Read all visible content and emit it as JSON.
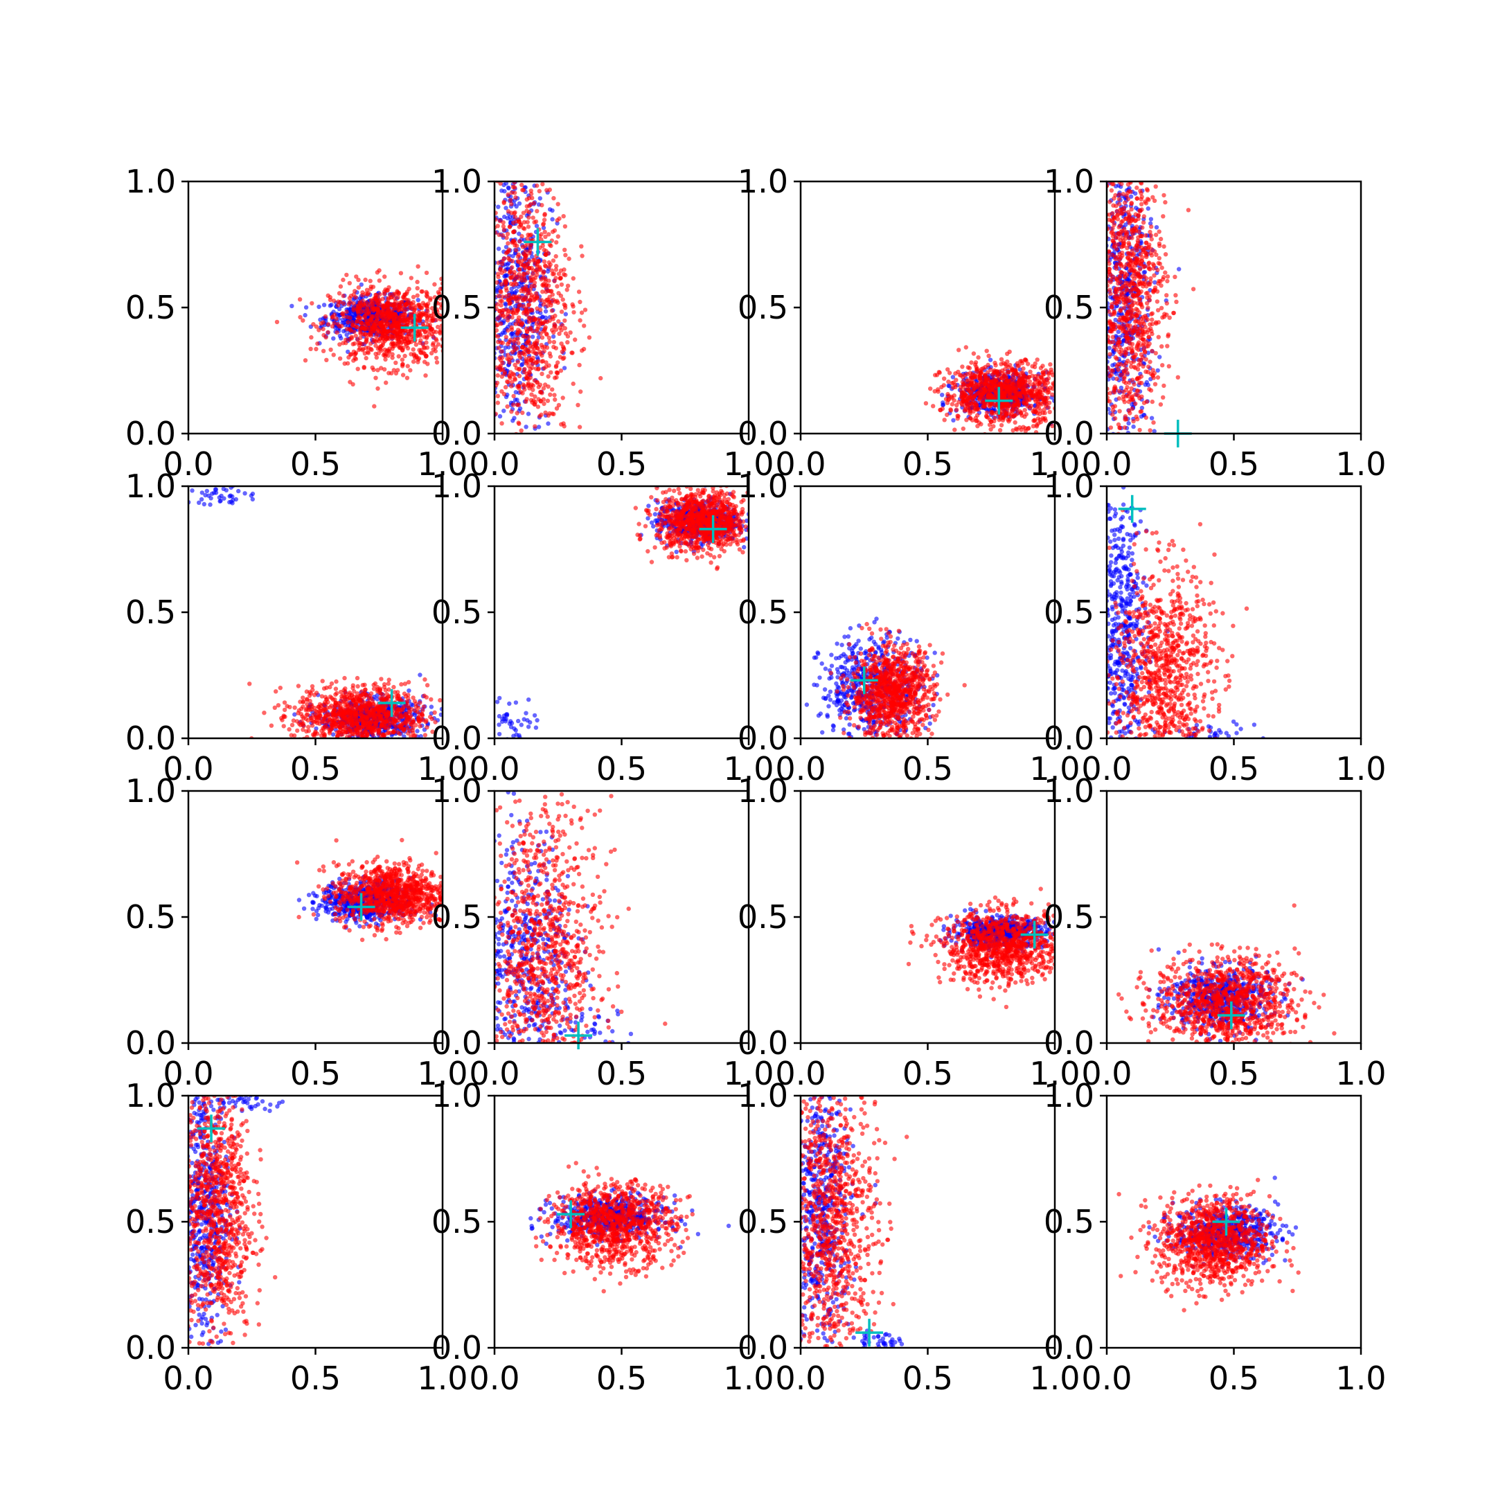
{
  "colors": {
    "background": "#ffffff",
    "series_a": "#0000ff",
    "series_b": "#ff0000",
    "marker": "#00bfbf",
    "axes": "#000000"
  },
  "chart_data": [
    {
      "type": "scatter",
      "xlim": [
        0,
        1
      ],
      "ylim": [
        0,
        1
      ],
      "grid": false,
      "x_ticks": [
        "0.0",
        "0.5",
        "1.0"
      ],
      "y_ticks": [
        "0.0",
        "0.5",
        "1.0"
      ],
      "marker": [
        0.89,
        0.42
      ],
      "series": [
        {
          "color": "#0000ff",
          "center": [
            0.72,
            0.46
          ],
          "spread": [
            0.09,
            0.04
          ],
          "clusters": []
        },
        {
          "color": "#ff0000",
          "center": [
            0.8,
            0.43
          ],
          "spread": [
            0.12,
            0.08
          ],
          "clusters": []
        }
      ]
    },
    {
      "type": "scatter",
      "xlim": [
        0,
        1
      ],
      "ylim": [
        0,
        1
      ],
      "grid": false,
      "x_ticks": [
        "0.0",
        "0.5",
        "1.0"
      ],
      "y_ticks": [
        "0.0",
        "0.5",
        "1.0"
      ],
      "marker": [
        0.17,
        0.76
      ],
      "series": [
        {
          "color": "#0000ff",
          "center": [
            0.08,
            0.55
          ],
          "spread": [
            0.07,
            0.28
          ],
          "clusters": []
        },
        {
          "color": "#ff0000",
          "center": [
            0.12,
            0.5
          ],
          "spread": [
            0.09,
            0.28
          ],
          "clusters": []
        }
      ]
    },
    {
      "type": "scatter",
      "xlim": [
        0,
        1
      ],
      "ylim": [
        0,
        1
      ],
      "grid": false,
      "x_ticks": [
        "0.0",
        "0.5",
        "1.0"
      ],
      "y_ticks": [
        "0.0",
        "0.5",
        "1.0"
      ],
      "marker": [
        0.78,
        0.13
      ],
      "series": [
        {
          "color": "#0000ff",
          "center": [
            0.78,
            0.16
          ],
          "spread": [
            0.08,
            0.04
          ],
          "clusters": []
        },
        {
          "color": "#ff0000",
          "center": [
            0.8,
            0.16
          ],
          "spread": [
            0.12,
            0.06
          ],
          "clusters": []
        }
      ]
    },
    {
      "type": "scatter",
      "xlim": [
        0,
        1
      ],
      "ylim": [
        0,
        1
      ],
      "grid": false,
      "x_ticks": [
        "0.0",
        "0.5",
        "1.0"
      ],
      "y_ticks": [
        "0.0",
        "0.5",
        "1.0"
      ],
      "marker": [
        0.28,
        0.0
      ],
      "series": [
        {
          "color": "#0000ff",
          "center": [
            0.07,
            0.55
          ],
          "spread": [
            0.06,
            0.3
          ],
          "clusters": []
        },
        {
          "color": "#ff0000",
          "center": [
            0.09,
            0.55
          ],
          "spread": [
            0.07,
            0.28
          ],
          "clusters": []
        }
      ]
    },
    {
      "type": "scatter",
      "xlim": [
        0,
        1
      ],
      "ylim": [
        0,
        1
      ],
      "grid": false,
      "x_ticks": [
        "0.0",
        "0.5",
        "1.0"
      ],
      "y_ticks": [
        "0.0",
        "0.5",
        "1.0"
      ],
      "marker": [
        0.8,
        0.14
      ],
      "series": [
        {
          "color": "#0000ff",
          "center": [
            0.72,
            0.08
          ],
          "spread": [
            0.1,
            0.04
          ],
          "clusters": [
            [
              0.12,
              0.96,
              0.06,
              0.02
            ]
          ]
        },
        {
          "color": "#ff0000",
          "center": [
            0.68,
            0.09
          ],
          "spread": [
            0.13,
            0.06
          ],
          "clusters": []
        }
      ]
    },
    {
      "type": "scatter",
      "xlim": [
        0,
        1
      ],
      "ylim": [
        0,
        1
      ],
      "grid": false,
      "x_ticks": [
        "0.0",
        "0.5",
        "1.0"
      ],
      "y_ticks": [
        "0.0",
        "0.5",
        "1.0"
      ],
      "marker": [
        0.86,
        0.83
      ],
      "series": [
        {
          "color": "#0000ff",
          "center": [
            0.8,
            0.86
          ],
          "spread": [
            0.08,
            0.04
          ],
          "clusters": [
            [
              0.08,
              0.07,
              0.05,
              0.05
            ]
          ]
        },
        {
          "color": "#ff0000",
          "center": [
            0.82,
            0.86
          ],
          "spread": [
            0.09,
            0.06
          ],
          "clusters": []
        }
      ]
    },
    {
      "type": "scatter",
      "xlim": [
        0,
        1
      ],
      "ylim": [
        0,
        1
      ],
      "grid": false,
      "x_ticks": [
        "0.0",
        "0.5",
        "1.0"
      ],
      "y_ticks": [
        "0.0",
        "0.5",
        "1.0"
      ],
      "marker": [
        0.25,
        0.23
      ],
      "series": [
        {
          "color": "#0000ff",
          "center": [
            0.28,
            0.2
          ],
          "spread": [
            0.1,
            0.1
          ],
          "clusters": []
        },
        {
          "color": "#ff0000",
          "center": [
            0.36,
            0.18
          ],
          "spread": [
            0.08,
            0.09
          ],
          "clusters": []
        }
      ]
    },
    {
      "type": "scatter",
      "xlim": [
        0,
        1
      ],
      "ylim": [
        0,
        1
      ],
      "grid": false,
      "x_ticks": [
        "0.0",
        "0.5",
        "1.0"
      ],
      "y_ticks": [
        "0.0",
        "0.5",
        "1.0"
      ],
      "marker": [
        0.1,
        0.91
      ],
      "series": [
        {
          "color": "#0000ff",
          "center": [
            0.06,
            0.4
          ],
          "spread": [
            0.05,
            0.3
          ],
          "clusters": [
            [
              0.35,
              0.02,
              0.12,
              0.02
            ]
          ]
        },
        {
          "color": "#ff0000",
          "center": [
            0.22,
            0.25
          ],
          "spread": [
            0.1,
            0.22
          ],
          "clusters": []
        }
      ]
    },
    {
      "type": "scatter",
      "xlim": [
        0,
        1
      ],
      "ylim": [
        0,
        1
      ],
      "grid": false,
      "x_ticks": [
        "0.0",
        "0.5",
        "1.0"
      ],
      "y_ticks": [
        "0.0",
        "0.5",
        "1.0"
      ],
      "marker": [
        0.68,
        0.54
      ],
      "series": [
        {
          "color": "#0000ff",
          "center": [
            0.7,
            0.56
          ],
          "spread": [
            0.09,
            0.04
          ],
          "clusters": []
        },
        {
          "color": "#ff0000",
          "center": [
            0.8,
            0.59
          ],
          "spread": [
            0.11,
            0.06
          ],
          "clusters": []
        }
      ]
    },
    {
      "type": "scatter",
      "xlim": [
        0,
        1
      ],
      "ylim": [
        0,
        1
      ],
      "grid": false,
      "x_ticks": [
        "0.0",
        "0.5",
        "1.0"
      ],
      "y_ticks": [
        "0.0",
        "0.5",
        "1.0"
      ],
      "marker": [
        0.33,
        0.03
      ],
      "series": [
        {
          "color": "#0000ff",
          "center": [
            0.12,
            0.3
          ],
          "spread": [
            0.1,
            0.28
          ],
          "clusters": [
            [
              0.35,
              0.05,
              0.1,
              0.04
            ]
          ]
        },
        {
          "color": "#ff0000",
          "center": [
            0.2,
            0.35
          ],
          "spread": [
            0.11,
            0.3
          ],
          "clusters": []
        }
      ]
    },
    {
      "type": "scatter",
      "xlim": [
        0,
        1
      ],
      "ylim": [
        0,
        1
      ],
      "grid": false,
      "x_ticks": [
        "0.0",
        "0.5",
        "1.0"
      ],
      "y_ticks": [
        "0.0",
        "0.5",
        "1.0"
      ],
      "marker": [
        0.92,
        0.43
      ],
      "series": [
        {
          "color": "#0000ff",
          "center": [
            0.78,
            0.44
          ],
          "spread": [
            0.09,
            0.03
          ],
          "clusters": []
        },
        {
          "color": "#ff0000",
          "center": [
            0.8,
            0.38
          ],
          "spread": [
            0.12,
            0.07
          ],
          "clusters": []
        }
      ]
    },
    {
      "type": "scatter",
      "xlim": [
        0,
        1
      ],
      "ylim": [
        0,
        1
      ],
      "grid": false,
      "x_ticks": [
        "0.0",
        "0.5",
        "1.0"
      ],
      "y_ticks": [
        "0.0",
        "0.5",
        "1.0"
      ],
      "marker": [
        0.49,
        0.11
      ],
      "series": [
        {
          "color": "#0000ff",
          "center": [
            0.44,
            0.18
          ],
          "spread": [
            0.1,
            0.06
          ],
          "clusters": []
        },
        {
          "color": "#ff0000",
          "center": [
            0.47,
            0.16
          ],
          "spread": [
            0.14,
            0.09
          ],
          "clusters": []
        }
      ]
    },
    {
      "type": "scatter",
      "xlim": [
        0,
        1
      ],
      "ylim": [
        0,
        1
      ],
      "grid": false,
      "x_ticks": [
        "0.0",
        "0.5",
        "1.0"
      ],
      "y_ticks": [
        "0.0",
        "0.5",
        "1.0"
      ],
      "marker": [
        0.09,
        0.87
      ],
      "series": [
        {
          "color": "#0000ff",
          "center": [
            0.06,
            0.55
          ],
          "spread": [
            0.05,
            0.28
          ],
          "clusters": [
            [
              0.22,
              0.97,
              0.08,
              0.02
            ]
          ]
        },
        {
          "color": "#ff0000",
          "center": [
            0.11,
            0.55
          ],
          "spread": [
            0.07,
            0.27
          ],
          "clusters": []
        }
      ]
    },
    {
      "type": "scatter",
      "xlim": [
        0,
        1
      ],
      "ylim": [
        0,
        1
      ],
      "grid": false,
      "x_ticks": [
        "0.0",
        "0.5",
        "1.0"
      ],
      "y_ticks": [
        "0.0",
        "0.5",
        "1.0"
      ],
      "marker": [
        0.3,
        0.53
      ],
      "series": [
        {
          "color": "#0000ff",
          "center": [
            0.45,
            0.52
          ],
          "spread": [
            0.11,
            0.04
          ],
          "clusters": []
        },
        {
          "color": "#ff0000",
          "center": [
            0.47,
            0.49
          ],
          "spread": [
            0.12,
            0.08
          ],
          "clusters": []
        }
      ]
    },
    {
      "type": "scatter",
      "xlim": [
        0,
        1
      ],
      "ylim": [
        0,
        1
      ],
      "grid": false,
      "x_ticks": [
        "0.0",
        "0.5",
        "1.0"
      ],
      "y_ticks": [
        "0.0",
        "0.5",
        "1.0"
      ],
      "marker": [
        0.27,
        0.06
      ],
      "series": [
        {
          "color": "#0000ff",
          "center": [
            0.08,
            0.55
          ],
          "spread": [
            0.06,
            0.28
          ],
          "clusters": [
            [
              0.3,
              0.02,
              0.05,
              0.02
            ]
          ]
        },
        {
          "color": "#ff0000",
          "center": [
            0.12,
            0.5
          ],
          "spread": [
            0.09,
            0.28
          ],
          "clusters": []
        }
      ]
    },
    {
      "type": "scatter",
      "xlim": [
        0,
        1
      ],
      "ylim": [
        0,
        1
      ],
      "grid": false,
      "x_ticks": [
        "0.0",
        "0.5",
        "1.0"
      ],
      "y_ticks": [
        "0.0",
        "0.5",
        "1.0"
      ],
      "marker": [
        0.47,
        0.5
      ],
      "series": [
        {
          "color": "#0000ff",
          "center": [
            0.47,
            0.46
          ],
          "spread": [
            0.1,
            0.05
          ],
          "clusters": []
        },
        {
          "color": "#ff0000",
          "center": [
            0.42,
            0.42
          ],
          "spread": [
            0.11,
            0.09
          ],
          "clusters": []
        }
      ]
    }
  ]
}
